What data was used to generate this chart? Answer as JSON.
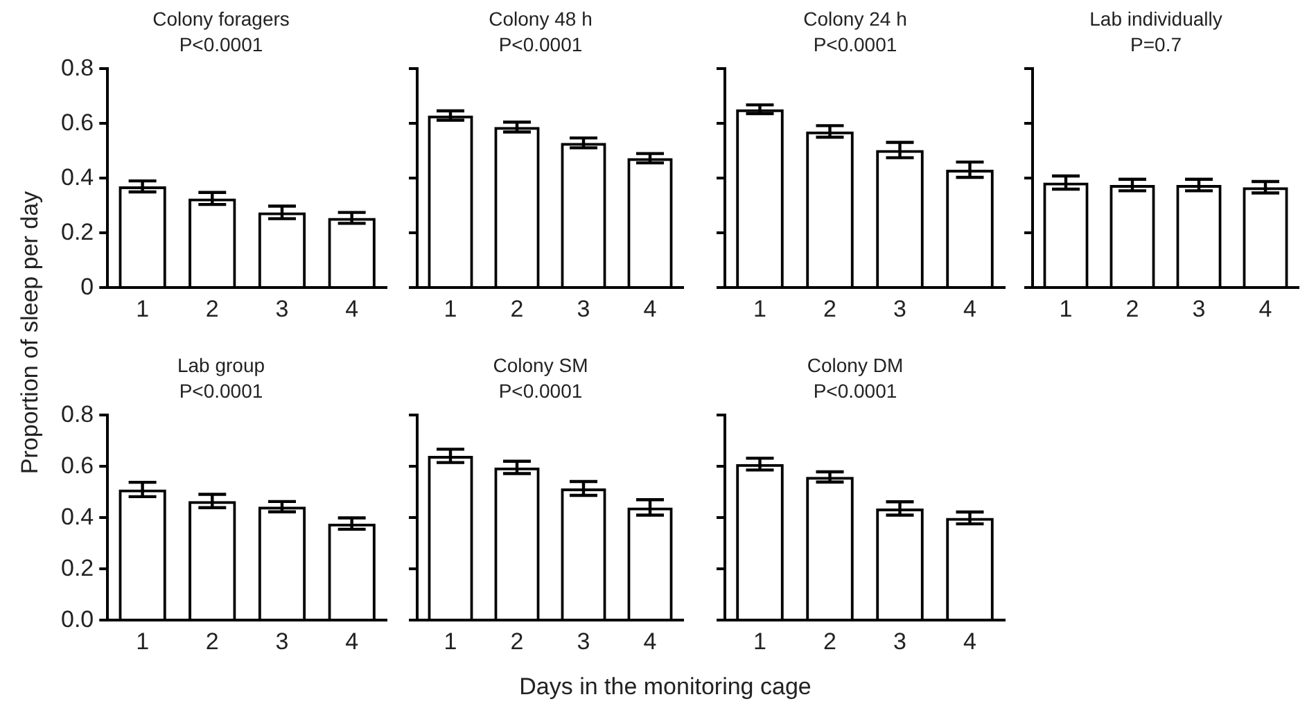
{
  "chart_data": [
    {
      "type": "bar",
      "title": "Colony foragers",
      "subtitle": "P<0.0001",
      "ylabel": "Proportion of sleep per day",
      "categories": [
        "1",
        "2",
        "3",
        "4"
      ],
      "values": [
        0.37,
        0.326,
        0.275,
        0.255
      ],
      "errors": [
        0.02,
        0.022,
        0.023,
        0.02
      ],
      "color": "#000000",
      "ylim": [
        0,
        0.8
      ],
      "yticks": [
        0,
        0.2,
        0.4,
        0.6,
        0.8
      ],
      "grid": false
    },
    {
      "type": "bar",
      "title": "Colony 48 h",
      "subtitle": "P<0.0001",
      "categories": [
        "1",
        "2",
        "3",
        "4"
      ],
      "values": [
        0.629,
        0.587,
        0.529,
        0.473
      ],
      "errors": [
        0.017,
        0.018,
        0.018,
        0.017
      ],
      "color": "#000000",
      "ylim": [
        0,
        0.8
      ],
      "yticks": [
        0,
        0.2,
        0.4,
        0.6,
        0.8
      ],
      "grid": false,
      "tick_labels": "x"
    },
    {
      "type": "bar",
      "title": "Colony 24 h",
      "subtitle": "P<0.0001",
      "categories": [
        "1",
        "2",
        "3",
        "4"
      ],
      "values": [
        0.652,
        0.571,
        0.503,
        0.431
      ],
      "errors": [
        0.016,
        0.021,
        0.028,
        0.028
      ],
      "color": "#000000",
      "ylim": [
        0,
        0.8
      ],
      "yticks": [
        0,
        0.2,
        0.4,
        0.6,
        0.8
      ],
      "grid": false,
      "tick_labels": "x"
    },
    {
      "type": "bar",
      "title": "Lab individually",
      "subtitle": "P=0.7",
      "categories": [
        "1",
        "2",
        "3",
        "4"
      ],
      "values": [
        0.384,
        0.375,
        0.375,
        0.367
      ],
      "errors": [
        0.024,
        0.021,
        0.021,
        0.021
      ],
      "color": "#000000",
      "ylim": [
        0,
        0.8
      ],
      "yticks": [
        0,
        0.2,
        0.4,
        0.6,
        0.8
      ],
      "grid": false,
      "tick_labels": "x"
    },
    {
      "type": "bar",
      "title": "Lab group",
      "subtitle": "P<0.0001",
      "categories": [
        "1",
        "2",
        "3",
        "4"
      ],
      "values": [
        0.51,
        0.465,
        0.443,
        0.377
      ],
      "errors": [
        0.028,
        0.026,
        0.02,
        0.022
      ],
      "color": "#000000",
      "ylim": [
        0,
        0.8
      ],
      "yticks": [
        {
          "value": 0,
          "label": "0.0"
        },
        0.2,
        0.4,
        0.6,
        0.8
      ],
      "grid": false
    },
    {
      "type": "bar",
      "title": "Colony SM",
      "subtitle": "P<0.0001",
      "xlabel": "Days in the monitoring cage",
      "categories": [
        "1",
        "2",
        "3",
        "4"
      ],
      "values": [
        0.641,
        0.596,
        0.514,
        0.44
      ],
      "errors": [
        0.026,
        0.024,
        0.027,
        0.03
      ],
      "color": "#000000",
      "ylim": [
        0,
        0.8
      ],
      "yticks": [
        0,
        0.2,
        0.4,
        0.6,
        0.8
      ],
      "grid": false,
      "tick_labels": "x"
    },
    {
      "type": "bar",
      "title": "Colony DM",
      "subtitle": "P<0.0001",
      "categories": [
        "1",
        "2",
        "3",
        "4"
      ],
      "values": [
        0.609,
        0.559,
        0.436,
        0.399
      ],
      "errors": [
        0.023,
        0.02,
        0.026,
        0.023
      ],
      "color": "#000000",
      "ylim": [
        0,
        0.8
      ],
      "yticks": [
        0,
        0.2,
        0.4,
        0.6,
        0.8
      ],
      "grid": false,
      "tick_labels": "x"
    }
  ]
}
